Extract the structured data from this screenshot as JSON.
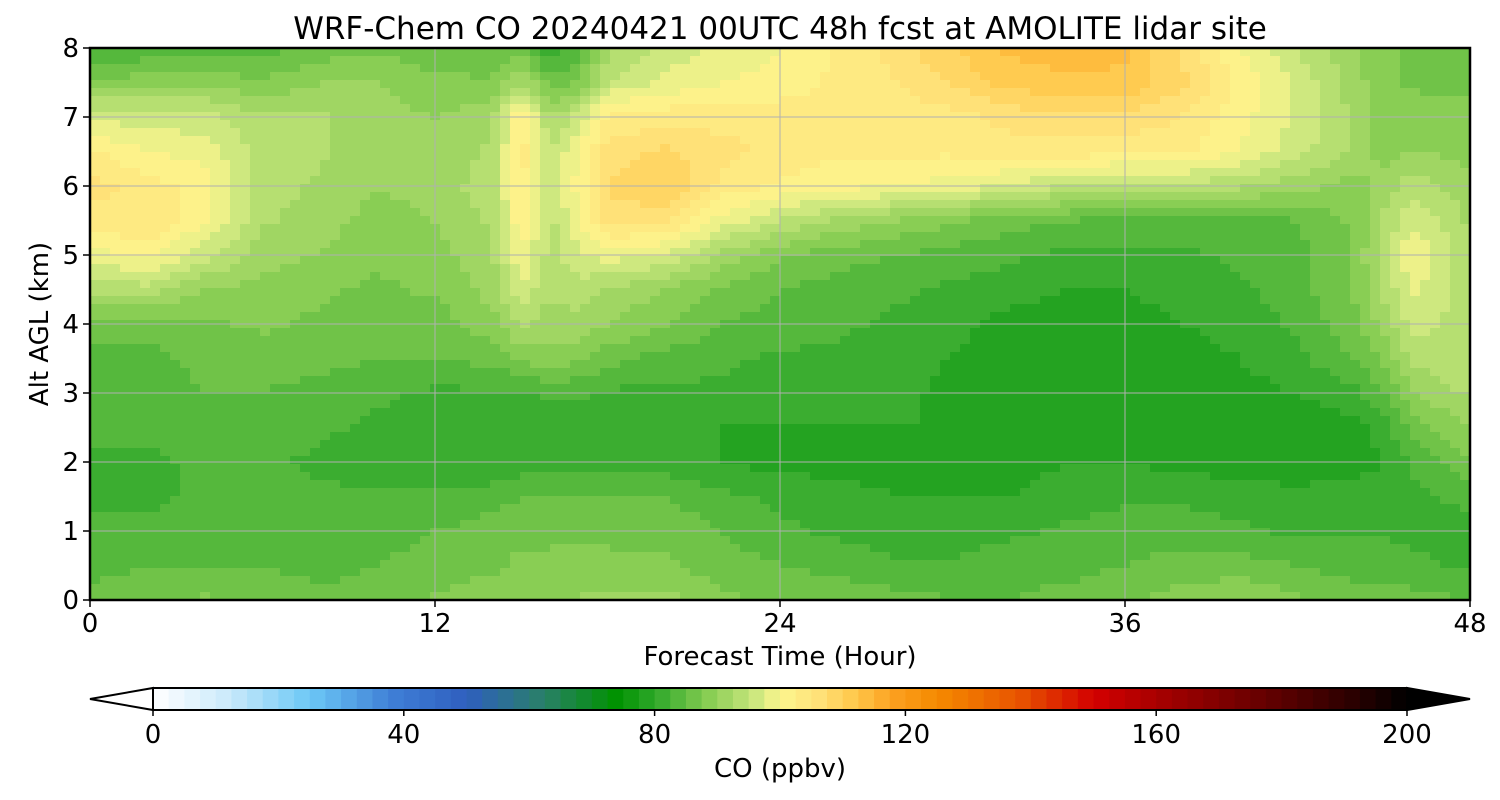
{
  "chart_data": {
    "type": "heatmap",
    "title": "WRF-Chem CO  20240421 00UTC 48h fcst at AMOLITE lidar site",
    "xlabel": "Forecast Time (Hour)",
    "ylabel": "Alt AGL (km)",
    "xlim": [
      0,
      48
    ],
    "ylim": [
      0,
      8
    ],
    "xticks": [
      0,
      12,
      24,
      36,
      48
    ],
    "yticks": [
      0,
      1,
      2,
      3,
      4,
      5,
      6,
      7,
      8
    ],
    "grid": true,
    "x": [
      0,
      2,
      4,
      6,
      8,
      10,
      12,
      14,
      15,
      16,
      17,
      18,
      20,
      22,
      24,
      26,
      28,
      30,
      32,
      34,
      36,
      38,
      40,
      42,
      44,
      45,
      46,
      48
    ],
    "y": [
      0,
      0.5,
      1,
      1.5,
      2,
      2.5,
      3,
      3.5,
      4,
      4.5,
      5,
      5.5,
      6,
      6.5,
      7,
      7.5,
      8
    ],
    "z_units": "ppbv",
    "values": [
      [
        86,
        87,
        88,
        87,
        86,
        86,
        88,
        89,
        89,
        89,
        90,
        91,
        91,
        88,
        87,
        87,
        86,
        85,
        85,
        86,
        87,
        89,
        90,
        88,
        86,
        86,
        86,
        85
      ],
      [
        84,
        85,
        85,
        85,
        84,
        85,
        86,
        87,
        88,
        88,
        89,
        88,
        88,
        86,
        85,
        84,
        83,
        83,
        84,
        84,
        85,
        86,
        86,
        85,
        84,
        84,
        83,
        82
      ],
      [
        83,
        83,
        84,
        84,
        84,
        84,
        85,
        86,
        87,
        87,
        87,
        87,
        87,
        85,
        83,
        82,
        81,
        81,
        82,
        83,
        84,
        84,
        83,
        82,
        82,
        82,
        82,
        82
      ],
      [
        82,
        82,
        83,
        83,
        83,
        83,
        83,
        84,
        85,
        85,
        85,
        85,
        85,
        83,
        82,
        81,
        80,
        80,
        80,
        81,
        82,
        82,
        81,
        81,
        81,
        81,
        82,
        83
      ],
      [
        82,
        82,
        83,
        83,
        82,
        81,
        80,
        80,
        81,
        81,
        81,
        81,
        81,
        80,
        79,
        79,
        79,
        79,
        79,
        80,
        80,
        79,
        79,
        78,
        79,
        80,
        83,
        87
      ],
      [
        83,
        83,
        84,
        84,
        83,
        82,
        81,
        80,
        80,
        80,
        80,
        80,
        80,
        80,
        80,
        80,
        80,
        80,
        79,
        78,
        78,
        78,
        78,
        78,
        79,
        81,
        86,
        90
      ],
      [
        83,
        83,
        85,
        85,
        84,
        83,
        82,
        82,
        82,
        83,
        83,
        82,
        82,
        82,
        81,
        81,
        81,
        79,
        78,
        78,
        78,
        78,
        79,
        80,
        82,
        85,
        90,
        93
      ],
      [
        84,
        84,
        86,
        86,
        86,
        85,
        85,
        86,
        88,
        89,
        88,
        86,
        84,
        83,
        82,
        82,
        81,
        80,
        78,
        78,
        78,
        79,
        80,
        82,
        85,
        88,
        93,
        95
      ],
      [
        86,
        86,
        87,
        88,
        87,
        86,
        86,
        89,
        93,
        91,
        92,
        90,
        88,
        85,
        84,
        83,
        82,
        81,
        79,
        79,
        79,
        80,
        81,
        83,
        87,
        91,
        96,
        94
      ],
      [
        93,
        94,
        90,
        89,
        88,
        87,
        88,
        91,
        97,
        93,
        94,
        92,
        90,
        87,
        85,
        84,
        83,
        82,
        81,
        80,
        80,
        81,
        82,
        84,
        88,
        93,
        98,
        93
      ],
      [
        99,
        101,
        96,
        91,
        90,
        88,
        89,
        92,
        100,
        94,
        97,
        99,
        97,
        92,
        88,
        86,
        85,
        84,
        83,
        82,
        82,
        82,
        83,
        84,
        88,
        94,
        100,
        93
      ],
      [
        104,
        105,
        100,
        93,
        91,
        89,
        90,
        93,
        102,
        94,
        100,
        106,
        106,
        99,
        95,
        92,
        90,
        88,
        86,
        85,
        84,
        84,
        84,
        85,
        88,
        93,
        97,
        92
      ],
      [
        106,
        104,
        101,
        94,
        92,
        90,
        91,
        94,
        103,
        95,
        101,
        108,
        110,
        104,
        102,
        101,
        100,
        99,
        97,
        95,
        94,
        94,
        93,
        91,
        89,
        91,
        94,
        91
      ],
      [
        103,
        100,
        99,
        94,
        93,
        91,
        91,
        93,
        104,
        95,
        100,
        106,
        108,
        106,
        104,
        103,
        103,
        103,
        104,
        104,
        103,
        103,
        100,
        96,
        92,
        89,
        90,
        89
      ],
      [
        97,
        96,
        96,
        93,
        93,
        91,
        90,
        92,
        103,
        92,
        96,
        103,
        104,
        104,
        104,
        103,
        103,
        104,
        106,
        107,
        107,
        105,
        101,
        97,
        92,
        89,
        89,
        88
      ],
      [
        88,
        89,
        89,
        88,
        90,
        90,
        88,
        88,
        93,
        86,
        88,
        95,
        98,
        100,
        101,
        103,
        105,
        108,
        111,
        112,
        112,
        108,
        102,
        97,
        91,
        88,
        87,
        87
      ],
      [
        82,
        83,
        84,
        84,
        86,
        87,
        86,
        85,
        87,
        80,
        84,
        92,
        96,
        98,
        100,
        103,
        106,
        110,
        113,
        114,
        113,
        107,
        100,
        95,
        90,
        88,
        87,
        87
      ]
    ],
    "colorbar": {
      "label": "CO  (ppbv)",
      "min": 0,
      "max": 200,
      "ticks": [
        0,
        40,
        80,
        120,
        160,
        200
      ],
      "extend": "both",
      "stops": [
        {
          "v": 0,
          "c": "#ffffff"
        },
        {
          "v": 12,
          "c": "#cbeafb"
        },
        {
          "v": 25,
          "c": "#6cc8f6"
        },
        {
          "v": 38,
          "c": "#3f7fd6"
        },
        {
          "v": 50,
          "c": "#2f5fbf"
        },
        {
          "v": 62,
          "c": "#2a7f6a"
        },
        {
          "v": 74,
          "c": "#009200"
        },
        {
          "v": 80,
          "c": "#2ea82a"
        },
        {
          "v": 88,
          "c": "#82cb50"
        },
        {
          "v": 96,
          "c": "#cbe77e"
        },
        {
          "v": 100,
          "c": "#fdf68e"
        },
        {
          "v": 106,
          "c": "#ffe27a"
        },
        {
          "v": 112,
          "c": "#ffc84a"
        },
        {
          "v": 118,
          "c": "#fca020"
        },
        {
          "v": 125,
          "c": "#f58a00"
        },
        {
          "v": 138,
          "c": "#e85500"
        },
        {
          "v": 150,
          "c": "#d30000"
        },
        {
          "v": 162,
          "c": "#a00000"
        },
        {
          "v": 178,
          "c": "#620000"
        },
        {
          "v": 192,
          "c": "#280000"
        },
        {
          "v": 200,
          "c": "#000000"
        }
      ]
    }
  }
}
